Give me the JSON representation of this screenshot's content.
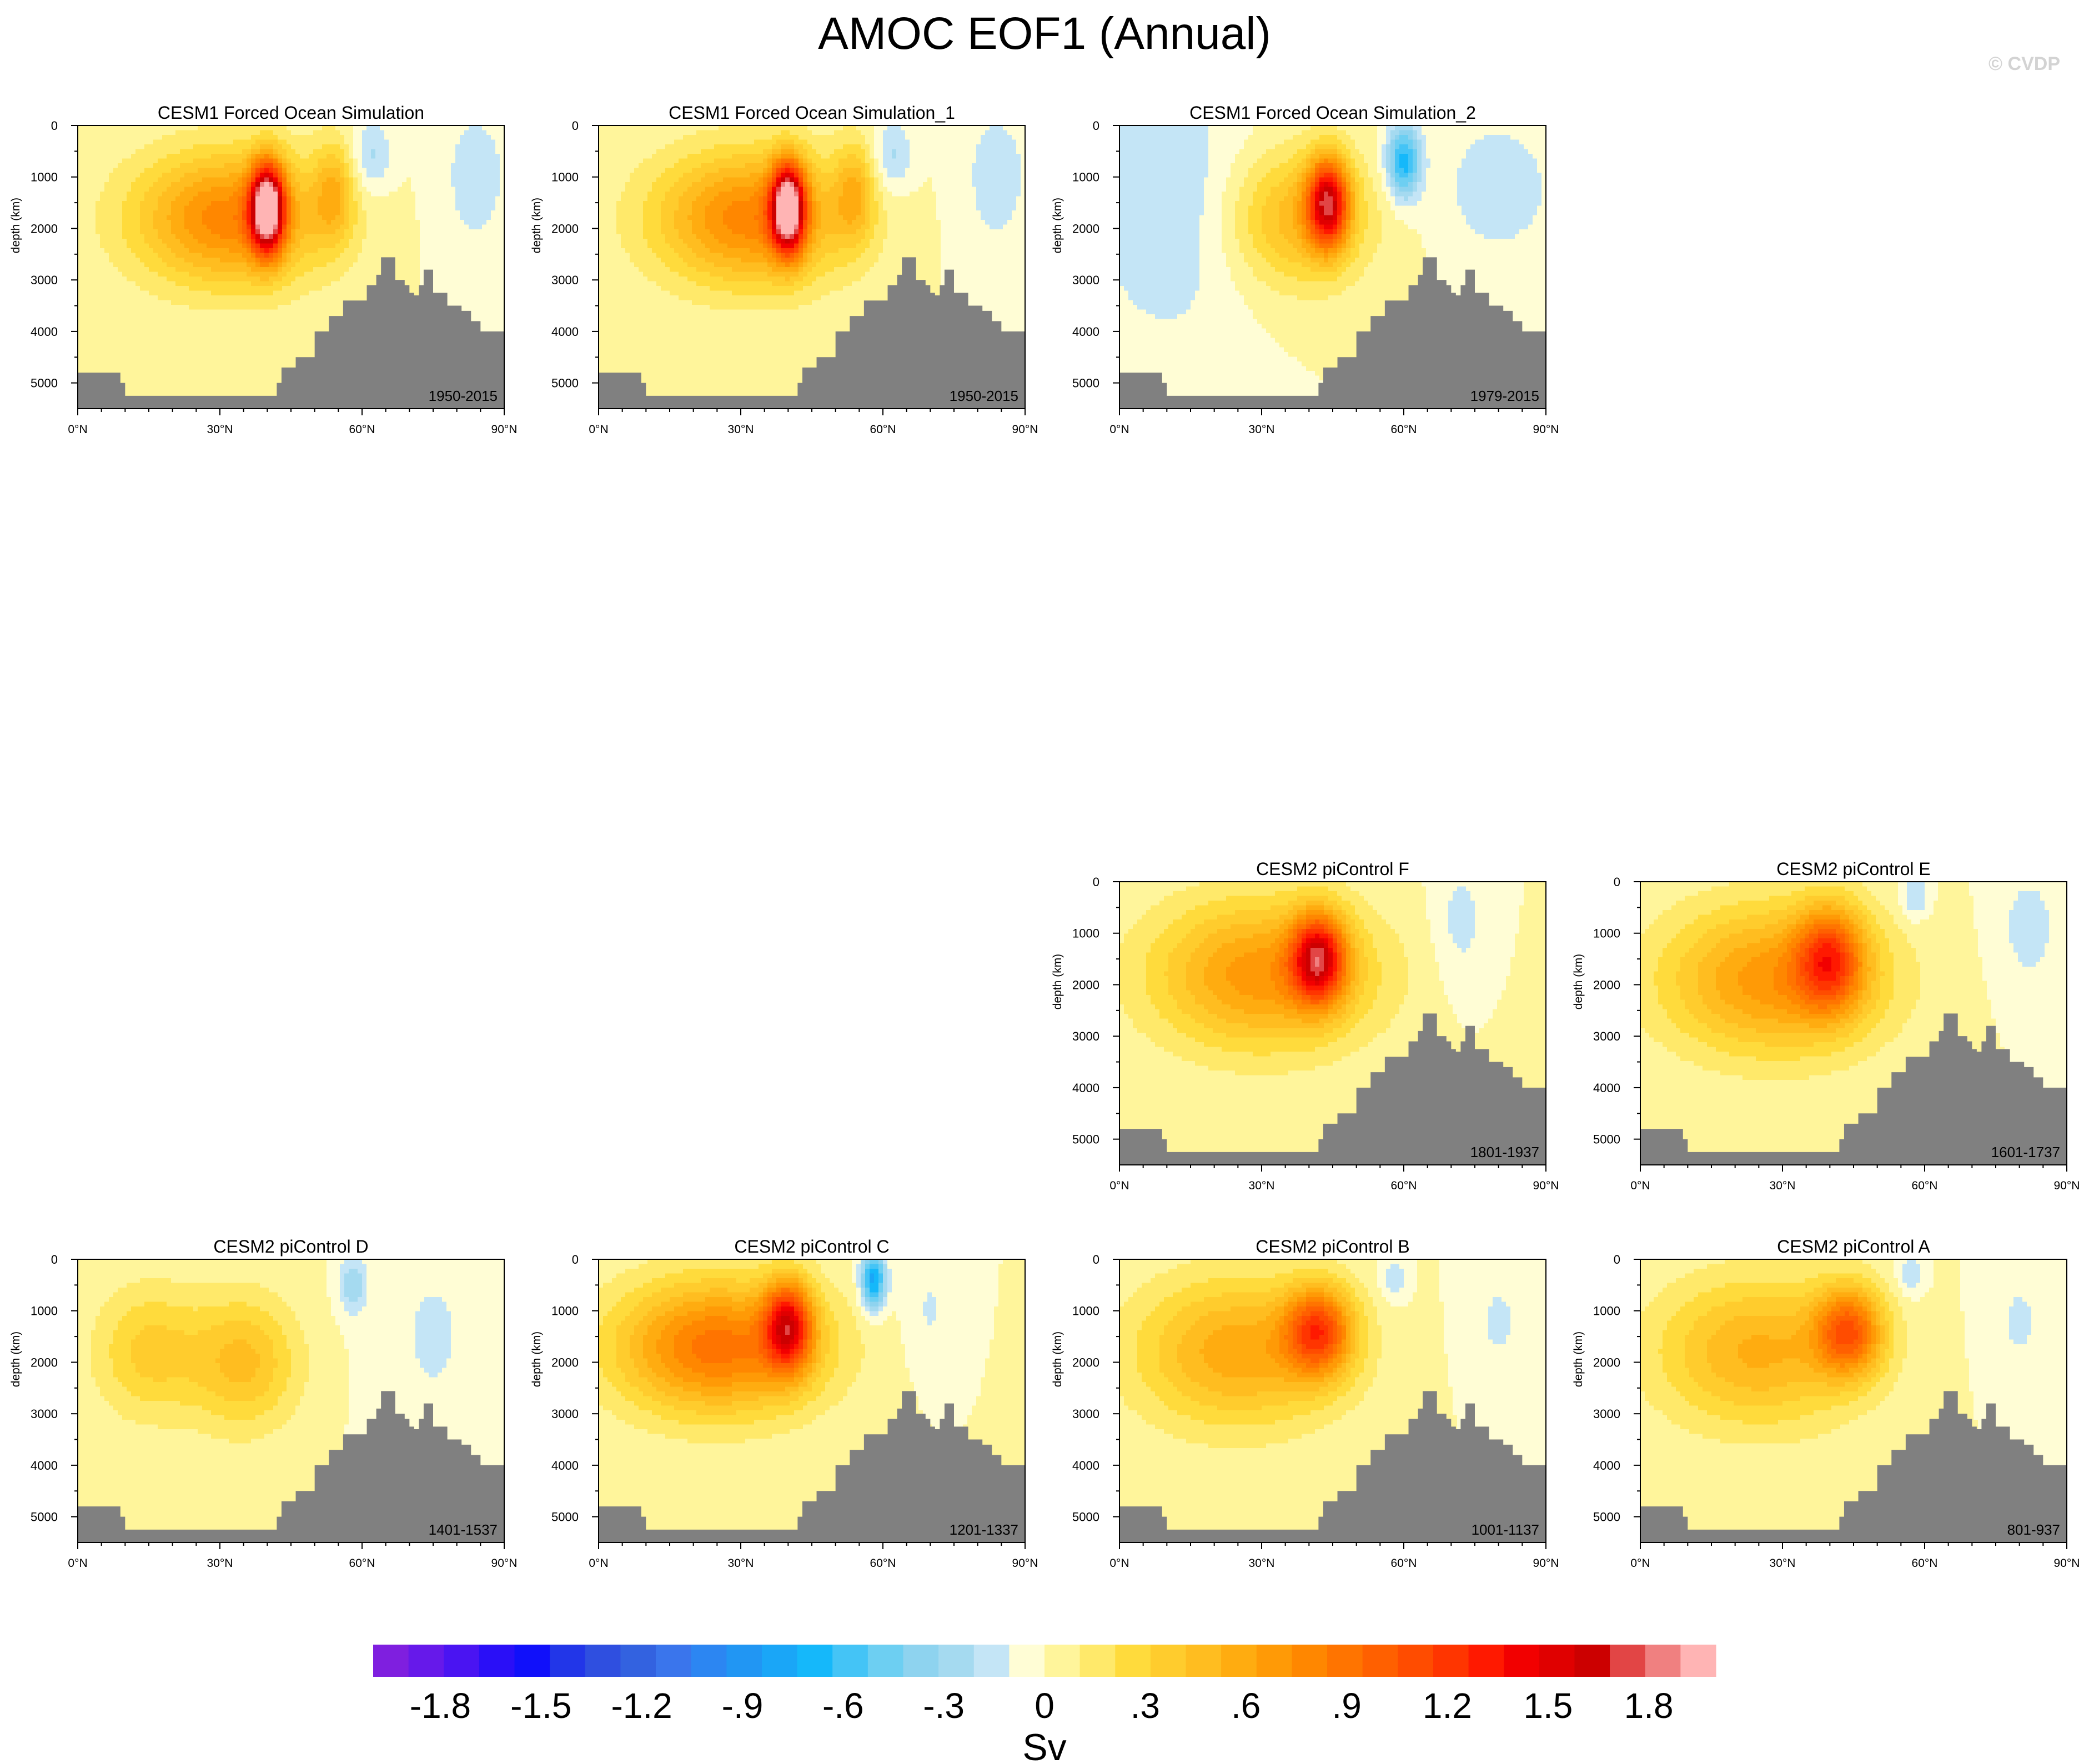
{
  "figure": {
    "title": "AMOC EOF1 (Annual)",
    "watermark": "© CVDP"
  },
  "colors": {
    "land": "#808080",
    "contour": "#333333",
    "scale": [
      "#7f1fdf",
      "#6619ea",
      "#4a14f2",
      "#2a0ff7",
      "#1010fa",
      "#2236e8",
      "#2f4fe0",
      "#3362e0",
      "#3a75ec",
      "#2c86f2",
      "#2196f3",
      "#1aa6f7",
      "#15b8fa",
      "#44c4f6",
      "#6dcff2",
      "#8ed3ef",
      "#a5daf0",
      "#c4e5f6",
      "#fffdd5",
      "#fff59b",
      "#ffe96a",
      "#ffdb3c",
      "#ffcc2d",
      "#ffbd20",
      "#ffac10",
      "#ff9a06",
      "#ff8700",
      "#ff7400",
      "#ff6000",
      "#ff4c00",
      "#ff3500",
      "#ff1900",
      "#f20000",
      "#e00000",
      "#cc0000",
      "#e24545",
      "#f08080",
      "#ffb4b4"
    ]
  },
  "chart_data": {
    "type": "contour",
    "colorbar": {
      "label": "Sv",
      "min": -2.0,
      "max": 2.0,
      "interval": 0.1,
      "tick_labels": [
        "-1.8",
        "-1.5",
        "-1.2",
        "-.9",
        "-.6",
        "-.3",
        "0",
        ".3",
        ".6",
        ".9",
        "1.2",
        "1.5",
        "1.8"
      ],
      "tick_values": [
        -1.8,
        -1.5,
        -1.2,
        -0.9,
        -0.6,
        -0.3,
        0,
        0.3,
        0.6,
        0.9,
        1.2,
        1.5,
        1.8
      ]
    },
    "axes": {
      "xlim": [
        0,
        90
      ],
      "ylim": [
        5500,
        0
      ],
      "ylabel": "depth (km)",
      "xticks": [
        0,
        30,
        60,
        90
      ],
      "xtick_labels": [
        "0°N",
        "30°N",
        "60°N",
        "90°N"
      ],
      "yticks": [
        0,
        1000,
        2000,
        3000,
        4000,
        5000
      ],
      "ytick_labels": [
        "0",
        "1000",
        "2000",
        "3000",
        "4000",
        "5000"
      ]
    },
    "bathymetry": [
      [
        0,
        4800
      ],
      [
        9,
        4800
      ],
      [
        9,
        5000
      ],
      [
        10,
        5250
      ],
      [
        40,
        5250
      ],
      [
        42,
        5000
      ],
      [
        43,
        4700
      ],
      [
        46,
        4500
      ],
      [
        50,
        4000
      ],
      [
        53,
        3700
      ],
      [
        56,
        3400
      ],
      [
        59,
        3400
      ],
      [
        61,
        3100
      ],
      [
        63,
        2900
      ],
      [
        64,
        2560
      ],
      [
        66,
        2560
      ],
      [
        67,
        3000
      ],
      [
        69,
        3100
      ],
      [
        70,
        3250
      ],
      [
        71,
        3300
      ],
      [
        72,
        3100
      ],
      [
        73,
        2800
      ],
      [
        75,
        3250
      ],
      [
        78,
        3500
      ],
      [
        80,
        3500
      ],
      [
        81,
        3600
      ],
      [
        83,
        3800
      ],
      [
        85,
        4000
      ],
      [
        90,
        4000
      ]
    ],
    "panels": [
      {
        "title": "CESM1 Forced Ocean Simulation",
        "period": "1950-2015",
        "slot": 0,
        "blobs": [
          {
            "lat": 40,
            "depth": 1600,
            "amp": 1.9,
            "sx": 2.5,
            "sz": 600
          },
          {
            "lat": 32,
            "depth": 1800,
            "amp": 0.8,
            "sx": 14,
            "sz": 900
          },
          {
            "lat": 54,
            "depth": 1300,
            "amp": 0.4,
            "sx": 3,
            "sz": 700
          },
          {
            "lat": 62,
            "depth": 600,
            "amp": -0.25,
            "sx": 3,
            "sz": 500
          },
          {
            "lat": 84,
            "depth": 1000,
            "amp": -0.15,
            "sx": 6,
            "sz": 1200
          }
        ]
      },
      {
        "title": "CESM1 Forced Ocean Simulation_1",
        "period": "1950-2015",
        "slot": 1,
        "blobs": [
          {
            "lat": 40,
            "depth": 1600,
            "amp": 1.85,
            "sx": 2.5,
            "sz": 600
          },
          {
            "lat": 32,
            "depth": 1800,
            "amp": 0.8,
            "sx": 14,
            "sz": 900
          },
          {
            "lat": 54,
            "depth": 1300,
            "amp": 0.4,
            "sx": 3,
            "sz": 700
          },
          {
            "lat": 62,
            "depth": 600,
            "amp": -0.25,
            "sx": 3,
            "sz": 500
          },
          {
            "lat": 84,
            "depth": 1000,
            "amp": -0.15,
            "sx": 6,
            "sz": 1200
          }
        ]
      },
      {
        "title": "CESM1 Forced Ocean Simulation_2",
        "period": "1979-2015",
        "slot": 2,
        "blobs": [
          {
            "lat": 44,
            "depth": 1500,
            "amp": 1.4,
            "sx": 3,
            "sz": 600
          },
          {
            "lat": 38,
            "depth": 1800,
            "amp": 0.5,
            "sx": 10,
            "sz": 900
          },
          {
            "lat": 60,
            "depth": 700,
            "amp": -0.7,
            "sx": 2.5,
            "sz": 500
          },
          {
            "lat": 10,
            "depth": 1500,
            "amp": -0.2,
            "sx": 12,
            "sz": 2000
          },
          {
            "lat": 80,
            "depth": 1200,
            "amp": -0.2,
            "sx": 8,
            "sz": 900
          }
        ]
      },
      {
        "title": "CESM2 piControl F",
        "period": "1801-1937",
        "slot": 6,
        "blobs": [
          {
            "lat": 42,
            "depth": 1500,
            "amp": 1.3,
            "sx": 4,
            "sz": 600
          },
          {
            "lat": 30,
            "depth": 1800,
            "amp": 0.7,
            "sx": 16,
            "sz": 1000
          },
          {
            "lat": 72,
            "depth": 800,
            "amp": -0.15,
            "sx": 4,
            "sz": 900
          }
        ]
      },
      {
        "title": "CESM2 piControl E",
        "period": "1601-1737",
        "slot": 7,
        "blobs": [
          {
            "lat": 40,
            "depth": 1500,
            "amp": 0.9,
            "sx": 5,
            "sz": 700
          },
          {
            "lat": 28,
            "depth": 1900,
            "amp": 0.7,
            "sx": 16,
            "sz": 1000
          },
          {
            "lat": 58,
            "depth": 300,
            "amp": -0.25,
            "sx": 2,
            "sz": 300
          },
          {
            "lat": 82,
            "depth": 900,
            "amp": -0.15,
            "sx": 5,
            "sz": 900
          }
        ]
      },
      {
        "title": "CESM2 piControl D",
        "period": "1401-1537",
        "slot": 8,
        "blobs": [
          {
            "lat": 35,
            "depth": 2000,
            "amp": 0.45,
            "sx": 8,
            "sz": 900
          },
          {
            "lat": 15,
            "depth": 1800,
            "amp": 0.35,
            "sx": 8,
            "sz": 900
          },
          {
            "lat": 58,
            "depth": 500,
            "amp": -0.3,
            "sx": 2,
            "sz": 400
          },
          {
            "lat": 75,
            "depth": 1500,
            "amp": -0.12,
            "sx": 8,
            "sz": 1500
          }
        ]
      },
      {
        "title": "CESM2 piControl C",
        "period": "1201-1337",
        "slot": 9,
        "blobs": [
          {
            "lat": 40,
            "depth": 1300,
            "amp": 1.2,
            "sx": 3.5,
            "sz": 600
          },
          {
            "lat": 25,
            "depth": 1700,
            "amp": 0.9,
            "sx": 15,
            "sz": 900
          },
          {
            "lat": 58,
            "depth": 400,
            "amp": -0.8,
            "sx": 1.8,
            "sz": 400
          },
          {
            "lat": 70,
            "depth": 1000,
            "amp": -0.12,
            "sx": 4,
            "sz": 800
          }
        ]
      },
      {
        "title": "CESM2 piControl B",
        "period": "1001-1137",
        "slot": 10,
        "blobs": [
          {
            "lat": 42,
            "depth": 1400,
            "amp": 1.0,
            "sx": 5,
            "sz": 600
          },
          {
            "lat": 25,
            "depth": 1800,
            "amp": 0.6,
            "sx": 15,
            "sz": 1000
          },
          {
            "lat": 58,
            "depth": 400,
            "amp": -0.2,
            "sx": 2,
            "sz": 300
          },
          {
            "lat": 80,
            "depth": 1200,
            "amp": -0.12,
            "sx": 5,
            "sz": 900
          }
        ]
      },
      {
        "title": "CESM2 piControl A",
        "period": "801-937",
        "slot": 11,
        "blobs": [
          {
            "lat": 44,
            "depth": 1400,
            "amp": 0.9,
            "sx": 5,
            "sz": 600
          },
          {
            "lat": 25,
            "depth": 1800,
            "amp": 0.55,
            "sx": 15,
            "sz": 1000
          },
          {
            "lat": 57,
            "depth": 300,
            "amp": -0.2,
            "sx": 2,
            "sz": 300
          },
          {
            "lat": 80,
            "depth": 1200,
            "amp": -0.12,
            "sx": 5,
            "sz": 900
          }
        ]
      }
    ]
  }
}
